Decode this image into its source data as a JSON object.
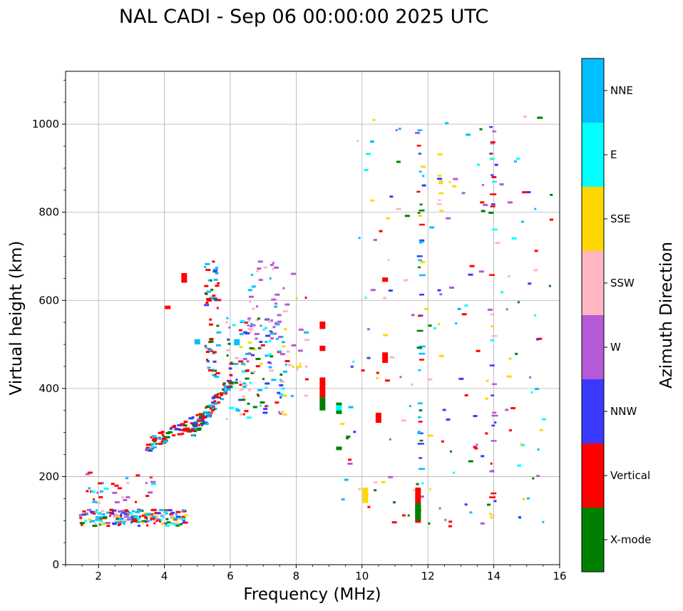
{
  "chart_data": {
    "type": "scatter",
    "title": "NAL CADI - Sep 06 00:00:00 2025 UTC",
    "xlabel": "Frequency (MHz)",
    "ylabel": "Virtual height (km)",
    "xlim": [
      1,
      16
    ],
    "ylim": [
      0,
      1120
    ],
    "xticks": [
      2,
      4,
      6,
      8,
      10,
      12,
      14,
      16
    ],
    "yticks": [
      0,
      200,
      400,
      600,
      800,
      1000
    ],
    "grid": true,
    "colorbar": {
      "label": "Azimuth Direction",
      "categories": [
        {
          "name": "X-mode",
          "color": "#008000"
        },
        {
          "name": "Vertical",
          "color": "#ff0000"
        },
        {
          "name": "NNW",
          "color": "#3a3aff"
        },
        {
          "name": "W",
          "color": "#b45ad6"
        },
        {
          "name": "SSW",
          "color": "#ffb6c1"
        },
        {
          "name": "SSE",
          "color": "#ffd700"
        },
        {
          "name": "E",
          "color": "#00ffff"
        },
        {
          "name": "NNE",
          "color": "#00bfff"
        }
      ]
    },
    "echo_groups": [
      {
        "name": "E-layer cluster",
        "f": [
          1.4,
          4.6
        ],
        "h": [
          88,
          125
        ],
        "n": 190,
        "cats": [
          0,
          1,
          1,
          2,
          3,
          4,
          5,
          6,
          7,
          7
        ]
      },
      {
        "name": "low scattered 180-210",
        "f": [
          1.4,
          3.6
        ],
        "h": [
          140,
          210
        ],
        "n": 34,
        "cats": [
          1,
          1,
          4,
          6,
          7,
          3
        ]
      },
      {
        "name": "F2 trace",
        "f": [
          3.4,
          5.2
        ],
        "h": [
          265,
          335
        ],
        "n": 80,
        "cats": [
          1,
          1,
          1,
          7,
          0,
          2
        ],
        "trace": true,
        "hf": [
          270,
          335
        ]
      },
      {
        "name": "F2 main",
        "f": [
          4.8,
          6.0
        ],
        "h": [
          300,
          420
        ],
        "n": 90,
        "cats": [
          0,
          0,
          1,
          7,
          7,
          1,
          2
        ],
        "trace": true,
        "hf": [
          300,
          420
        ]
      },
      {
        "name": "F2 upper",
        "f": [
          5.2,
          5.6
        ],
        "h": [
          420,
          690
        ],
        "n": 60,
        "cats": [
          1,
          1,
          1,
          7,
          0,
          2
        ]
      },
      {
        "name": "F2 spread",
        "f": [
          5.8,
          7.6
        ],
        "h": [
          330,
          560
        ],
        "n": 130,
        "cats": [
          0,
          1,
          2,
          3,
          4,
          5,
          6,
          7
        ]
      },
      {
        "name": "W cluster",
        "f": [
          6.5,
          7.5
        ],
        "h": [
          500,
          690
        ],
        "n": 40,
        "cats": [
          3,
          3,
          3,
          4,
          7
        ]
      },
      {
        "name": "7.5-8.2 scatter",
        "f": [
          7.5,
          8.3
        ],
        "h": [
          380,
          670
        ],
        "n": 28,
        "cats": [
          3,
          4,
          7,
          5,
          1
        ]
      },
      {
        "name": "sparse upper",
        "f": [
          9.5,
          15.8
        ],
        "h": [
          380,
          1020
        ],
        "n": 110,
        "cats": [
          1,
          2,
          3,
          4,
          5,
          6,
          7,
          0
        ]
      },
      {
        "name": "sparse lower",
        "f": [
          9.2,
          15.8
        ],
        "h": [
          85,
          380
        ],
        "n": 70,
        "cats": [
          0,
          1,
          2,
          3,
          4,
          5,
          6,
          7
        ]
      }
    ],
    "echo_columns": [
      {
        "f": 11.7,
        "h": [
          90,
          990
        ],
        "n": 40,
        "cats": [
          2,
          7,
          1,
          0
        ]
      },
      {
        "f": 13.9,
        "h": [
          90,
          1015
        ],
        "n": 36,
        "cats": [
          3,
          2,
          1,
          4,
          5,
          6
        ]
      },
      {
        "f": 12.3,
        "h": [
          790,
          935
        ],
        "n": 8,
        "cats": [
          5,
          4
        ]
      }
    ],
    "echo_blocks": [
      {
        "f": 8.8,
        "h": [
          535,
          552
        ],
        "cat": 1
      },
      {
        "f": 8.8,
        "h": [
          485,
          497
        ],
        "cat": 1
      },
      {
        "f": 8.8,
        "h": [
          380,
          425
        ],
        "cat": 1
      },
      {
        "f": 8.8,
        "h": [
          350,
          380
        ],
        "cat": 0
      },
      {
        "f": 9.3,
        "h": [
          342,
          368
        ],
        "cat": 0
      },
      {
        "f": 9.3,
        "h": [
          350,
          362
        ],
        "cat": 6
      },
      {
        "f": 10.5,
        "h": [
          322,
          345
        ],
        "cat": 1
      },
      {
        "f": 10.7,
        "h": [
          458,
          482
        ],
        "cat": 1
      },
      {
        "f": 10.7,
        "h": [
          642,
          652
        ],
        "cat": 1
      },
      {
        "f": 10.1,
        "h": [
          140,
          175
        ],
        "cat": 5
      },
      {
        "f": 11.7,
        "h": [
          95,
          175
        ],
        "cat": 1
      },
      {
        "f": 11.7,
        "h": [
          100,
          140
        ],
        "cat": 0
      },
      {
        "f": 9.3,
        "h": [
          260,
          268
        ],
        "cat": 0
      },
      {
        "f": 15.4,
        "h": [
          1012,
          1017
        ],
        "cat": 0
      },
      {
        "f": 5.0,
        "h": [
          500,
          512
        ],
        "cat": 7
      },
      {
        "f": 6.2,
        "h": [
          498,
          512
        ],
        "cat": 7
      },
      {
        "f": 4.6,
        "h": [
          640,
          662
        ],
        "cat": 1
      },
      {
        "f": 4.1,
        "h": [
          580,
          588
        ],
        "cat": 1
      }
    ]
  }
}
